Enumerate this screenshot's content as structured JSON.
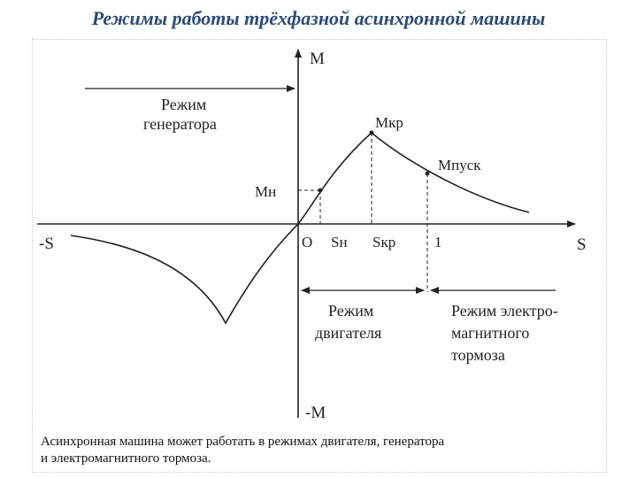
{
  "header": {
    "title": "Режимы работы трёхфазной асинхронной машины"
  },
  "diagram": {
    "axis_m": "M",
    "axis_neg_m": "-M",
    "axis_s": "S",
    "axis_neg_s": "-S",
    "origin": "O",
    "s_n": "Sн",
    "s_kr": "Sкр",
    "one": "1",
    "m_n": "Мн",
    "m_kr": "Мкр",
    "m_pusk": "Мпуск",
    "generator_mode": [
      "Режим",
      "генератора"
    ],
    "motor_mode": [
      "Режим",
      "двигателя"
    ],
    "brake_mode": [
      "Режим электро-",
      "магнитного",
      "тормоза"
    ]
  },
  "caption": {
    "line1": "Асинхронная машина может работать в режимах двигателя, генератора",
    "line2": "и электромагнитного тормоза."
  }
}
